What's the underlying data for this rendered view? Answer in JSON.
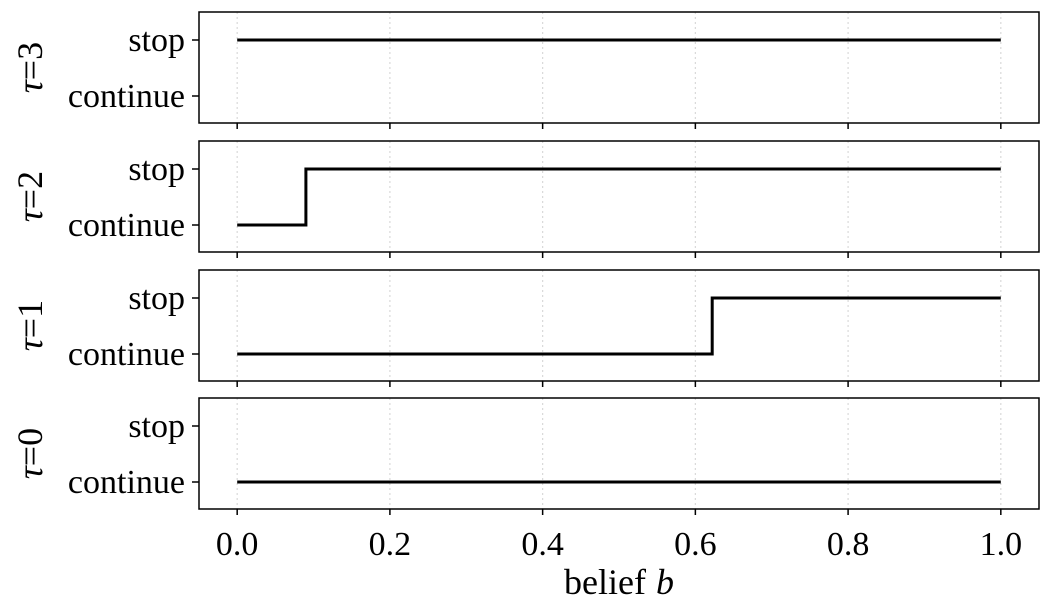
{
  "chart_data": {
    "type": "line",
    "step": true,
    "xlabel": "belief",
    "xlabel_var": "b",
    "xlim": [
      -0.05,
      1.05
    ],
    "x_ticks": [
      "0.0",
      "0.2",
      "0.4",
      "0.6",
      "0.8",
      "1.0"
    ],
    "x_tick_values": [
      0.0,
      0.2,
      0.4,
      0.6,
      0.8,
      1.0
    ],
    "y_categories": [
      "continue",
      "stop"
    ],
    "grid": "x-dotted",
    "color": "#000000",
    "panels": [
      {
        "ylabel_var": "τ",
        "ylabel_eq": "=3",
        "x": [
          0.0,
          1.0
        ],
        "y": [
          "stop",
          "stop"
        ]
      },
      {
        "ylabel_var": "τ",
        "ylabel_eq": "=2",
        "x": [
          0.0,
          0.09,
          0.09,
          1.0
        ],
        "y": [
          "continue",
          "continue",
          "stop",
          "stop"
        ]
      },
      {
        "ylabel_var": "τ",
        "ylabel_eq": "=1",
        "x": [
          0.0,
          0.622,
          0.622,
          1.0
        ],
        "y": [
          "continue",
          "continue",
          "stop",
          "stop"
        ]
      },
      {
        "ylabel_var": "τ",
        "ylabel_eq": "=0",
        "x": [
          0.0,
          1.0
        ],
        "y": [
          "continue",
          "continue"
        ]
      }
    ]
  }
}
